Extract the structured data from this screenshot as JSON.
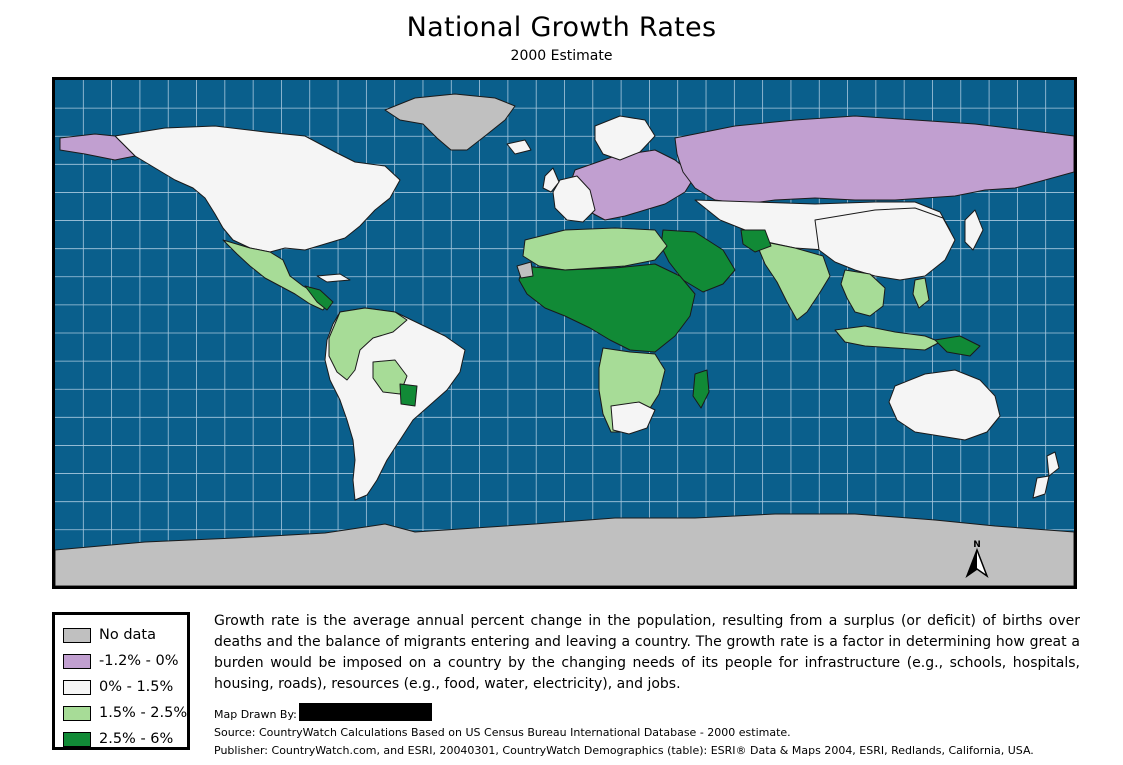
{
  "title": "National Growth Rates",
  "subtitle": "2000 Estimate",
  "map": {
    "ocean_color": "#0a5f8c",
    "graticule_color": "#a8c8de",
    "north_label": "N",
    "category_colors": {
      "no_data": "#c0c0c0",
      "negative": "#c19fd0",
      "low": "#f5f5f5",
      "medium": "#a7dc97",
      "high": "#118a36"
    }
  },
  "legend": {
    "items": [
      {
        "label": "No data",
        "color": "#c0c0c0"
      },
      {
        "label": "-1.2% - 0%",
        "color": "#c19fd0"
      },
      {
        "label": "0% - 1.5%",
        "color": "#f5f5f5"
      },
      {
        "label": "1.5% - 2.5%",
        "color": "#a7dc97"
      },
      {
        "label": "2.5% - 6%",
        "color": "#118a36"
      }
    ]
  },
  "description": "Growth rate is the average annual percent change in the population, resulting from a surplus (or deficit) of births over deaths and the balance of migrants entering and leaving a country. The growth rate is a factor in determining how great a burden would be imposed on a country by the changing needs of its people for infrastructure (e.g., schools, hospitals, housing, roads), resources (e.g., food, water, electricity), and jobs.",
  "credits": {
    "drawn_by": "Map Drawn By:",
    "source": "Source: CountryWatch Calculations Based on US Census Bureau International Database - 2000 estimate.",
    "publisher": "Publisher: CountryWatch.com, and ESRI, 20040301, CountryWatch Demographics (table): ESRI® Data & Maps 2004, ESRI, Redlands, California, USA."
  }
}
